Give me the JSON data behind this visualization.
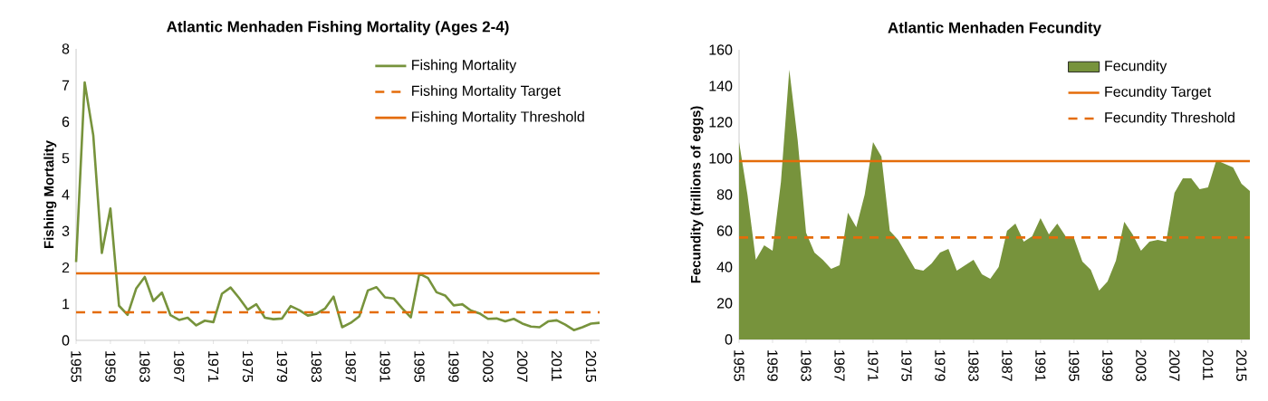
{
  "chart_data": [
    {
      "type": "line",
      "title": "Atlantic Menhaden Fishing Mortality (Ages 2-4)",
      "ylabel": "Fishing Mortality",
      "x": [
        1955,
        1956,
        1957,
        1958,
        1959,
        1960,
        1961,
        1962,
        1963,
        1964,
        1965,
        1966,
        1967,
        1968,
        1969,
        1970,
        1971,
        1972,
        1973,
        1974,
        1975,
        1976,
        1977,
        1978,
        1979,
        1980,
        1981,
        1982,
        1983,
        1984,
        1985,
        1986,
        1987,
        1988,
        1989,
        1990,
        1991,
        1992,
        1993,
        1994,
        1995,
        1996,
        1997,
        1998,
        1999,
        2000,
        2001,
        2002,
        2003,
        2004,
        2005,
        2006,
        2007,
        2008,
        2009,
        2010,
        2011,
        2012,
        2013,
        2014,
        2015,
        2016
      ],
      "series": [
        {
          "name": "Fishing Mortality",
          "color": "#77933c",
          "values": [
            2.15,
            7.08,
            5.63,
            2.4,
            3.62,
            0.95,
            0.7,
            1.42,
            1.74,
            1.08,
            1.31,
            0.69,
            0.56,
            0.62,
            0.41,
            0.54,
            0.5,
            1.28,
            1.45,
            1.16,
            0.84,
            0.99,
            0.62,
            0.58,
            0.6,
            0.94,
            0.83,
            0.68,
            0.73,
            0.87,
            1.2,
            0.36,
            0.48,
            0.66,
            1.37,
            1.46,
            1.18,
            1.15,
            0.88,
            0.63,
            1.83,
            1.71,
            1.32,
            1.23,
            0.96,
            0.99,
            0.82,
            0.74,
            0.59,
            0.6,
            0.52,
            0.59,
            0.46,
            0.38,
            0.36,
            0.52,
            0.55,
            0.43,
            0.28,
            0.36,
            0.46,
            0.48
          ]
        }
      ],
      "ref_lines": [
        {
          "axis": "y",
          "value": 0.77,
          "label": "Fishing Mortality Target",
          "color": "#e46c0a",
          "line_style": "dashed"
        },
        {
          "axis": "y",
          "value": 1.84,
          "label": "Fishing Mortality Threshold",
          "color": "#e46c0a",
          "line_style": "solid"
        }
      ],
      "xlim": [
        1955,
        2016
      ],
      "xticks": [
        1955,
        1959,
        1963,
        1967,
        1971,
        1975,
        1979,
        1983,
        1987,
        1991,
        1995,
        1999,
        2003,
        2007,
        2011,
        2015
      ],
      "ylim": [
        0,
        8
      ],
      "yticks": [
        0,
        1,
        2,
        3,
        4,
        5,
        6,
        7,
        8
      ],
      "legend": "top right",
      "marker": "none",
      "line_style": "solid"
    },
    {
      "type": "area",
      "title": "Atlantic Menhaden Fecundity",
      "ylabel": "Fecundity (trillions of eggs)",
      "x": [
        1955,
        1956,
        1957,
        1958,
        1959,
        1960,
        1961,
        1962,
        1963,
        1964,
        1965,
        1966,
        1967,
        1968,
        1969,
        1970,
        1971,
        1972,
        1973,
        1974,
        1975,
        1976,
        1977,
        1978,
        1979,
        1980,
        1981,
        1982,
        1983,
        1984,
        1985,
        1986,
        1987,
        1988,
        1989,
        1990,
        1991,
        1992,
        1993,
        1994,
        1995,
        1996,
        1997,
        1998,
        1999,
        2000,
        2001,
        2002,
        2003,
        2004,
        2005,
        2006,
        2007,
        2008,
        2009,
        2010,
        2011,
        2012,
        2013,
        2014,
        2015,
        2016
      ],
      "series": [
        {
          "name": "Fecundity",
          "color": "#77933c",
          "values": [
            109,
            80,
            44,
            52,
            49,
            87,
            149,
            110,
            59,
            48,
            44,
            39,
            41,
            70,
            62,
            80,
            109,
            101,
            60,
            55,
            47,
            39,
            38,
            42,
            48,
            50,
            38,
            41,
            44,
            36,
            33.5,
            40,
            60,
            64,
            54,
            57,
            67,
            58,
            64,
            57,
            56,
            43,
            38.5,
            27,
            32,
            43.5,
            65,
            58,
            49,
            54,
            55,
            54,
            81,
            89,
            89,
            83,
            84,
            99,
            97,
            95,
            86,
            82
          ]
        }
      ],
      "ref_lines": [
        {
          "axis": "y",
          "value": 98.5,
          "label": "Fecundity Target",
          "color": "#e46c0a",
          "line_style": "solid"
        },
        {
          "axis": "y",
          "value": 56.3,
          "label": "Fecundity Threshold",
          "color": "#e46c0a",
          "line_style": "dashed"
        }
      ],
      "xlim": [
        1955,
        2016
      ],
      "xticks": [
        1955,
        1959,
        1963,
        1967,
        1971,
        1975,
        1979,
        1983,
        1987,
        1991,
        1995,
        1999,
        2003,
        2007,
        2011,
        2015
      ],
      "ylim": [
        0,
        160
      ],
      "yticks": [
        0,
        20,
        40,
        60,
        80,
        100,
        120,
        140,
        160
      ],
      "legend": "top right"
    }
  ]
}
